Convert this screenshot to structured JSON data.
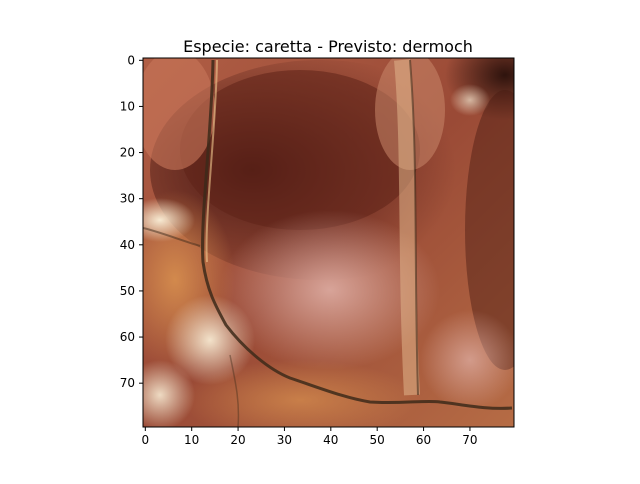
{
  "figure": {
    "title": "Especie: caretta - Previsto: dermoch",
    "image_subject": "close-up of turtle shell scute texture in reddish-brown, orange and pale pink tones with dark seam lines",
    "image_size": [
      80,
      80
    ],
    "x_ticks": [
      "0",
      "10",
      "20",
      "30",
      "40",
      "50",
      "60",
      "70"
    ],
    "y_ticks": [
      "0",
      "10",
      "20",
      "30",
      "40",
      "50",
      "60",
      "70"
    ],
    "colors": {
      "shell_dark": "#6b2618",
      "shell_mid": "#a8553a",
      "shell_orange": "#c97d45",
      "shell_pink": "#d9a89a",
      "shell_pale": "#f0dcc0",
      "seam": "#3d2a1a"
    }
  }
}
